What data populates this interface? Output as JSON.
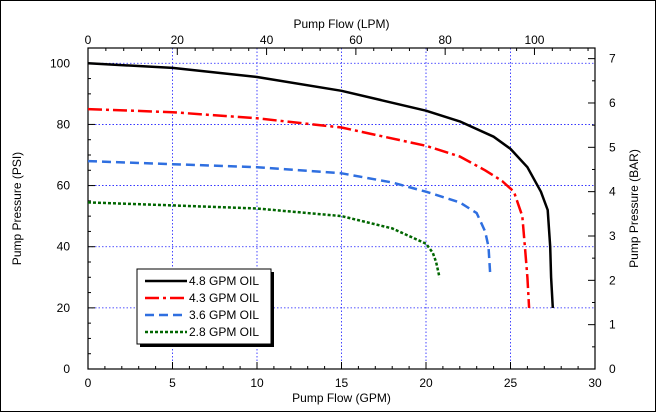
{
  "chart_data": {
    "type": "line",
    "title": "",
    "xlabel_bottom": "Pump Flow (GPM)",
    "xlabel_top": "Pump Flow (LPM)",
    "ylabel_left": "Pump Pressure (PSI)",
    "ylabel_right": "Pump Pressure (BAR)",
    "xlim_bottom": [
      0,
      30
    ],
    "xlim_top": [
      0,
      113.56
    ],
    "ylim_left": [
      0,
      105
    ],
    "ylim_right": [
      0,
      7.24
    ],
    "x_ticks_bottom": [
      "0",
      "5",
      "10",
      "15",
      "20",
      "25",
      "30"
    ],
    "x_ticks_top": [
      "0",
      "20",
      "40",
      "60",
      "80",
      "100"
    ],
    "y_ticks_left": [
      "0",
      "20",
      "40",
      "60",
      "80",
      "100"
    ],
    "y_ticks_right": [
      "0",
      "1",
      "2",
      "3",
      "4",
      "5",
      "6",
      "7"
    ],
    "grid": true,
    "legend_position": "bottom-left",
    "series": [
      {
        "name": "4.8 GPM OIL",
        "color": "#000000",
        "dash": "solid",
        "points": [
          [
            0,
            100
          ],
          [
            5,
            98.5
          ],
          [
            10,
            95.5
          ],
          [
            15,
            91
          ],
          [
            20,
            84.5
          ],
          [
            22,
            81
          ],
          [
            24,
            76
          ],
          [
            25,
            72
          ],
          [
            26,
            66
          ],
          [
            26.8,
            58
          ],
          [
            27.2,
            52
          ],
          [
            27.35,
            40
          ],
          [
            27.4,
            30
          ],
          [
            27.5,
            20
          ]
        ]
      },
      {
        "name": "4.3 GPM OIL",
        "color": "#ff0000",
        "dash": "dashdot",
        "points": [
          [
            0,
            85
          ],
          [
            5,
            84
          ],
          [
            10,
            82
          ],
          [
            15,
            79
          ],
          [
            20,
            73
          ],
          [
            22,
            69.5
          ],
          [
            23.5,
            65
          ],
          [
            24.5,
            61.5
          ],
          [
            25.2,
            58
          ],
          [
            25.7,
            50
          ],
          [
            25.85,
            40
          ],
          [
            26,
            30
          ],
          [
            26.1,
            20
          ]
        ]
      },
      {
        "name": "3.6 GPM OIL",
        "color": "#2f6fe0",
        "dash": "dashed",
        "points": [
          [
            0,
            68
          ],
          [
            5,
            67
          ],
          [
            10,
            66
          ],
          [
            15,
            64
          ],
          [
            18,
            61
          ],
          [
            20,
            58
          ],
          [
            22,
            54.5
          ],
          [
            23,
            51
          ],
          [
            23.5,
            45
          ],
          [
            23.7,
            40
          ],
          [
            23.8,
            31
          ]
        ]
      },
      {
        "name": "2.8 GPM OIL",
        "color": "#006600",
        "dash": "dotted",
        "points": [
          [
            0,
            54.5
          ],
          [
            5,
            53.5
          ],
          [
            10,
            52.5
          ],
          [
            15,
            50
          ],
          [
            18,
            46
          ],
          [
            20,
            41
          ],
          [
            20.4,
            38
          ],
          [
            20.6,
            35
          ],
          [
            20.8,
            30
          ]
        ]
      }
    ]
  }
}
